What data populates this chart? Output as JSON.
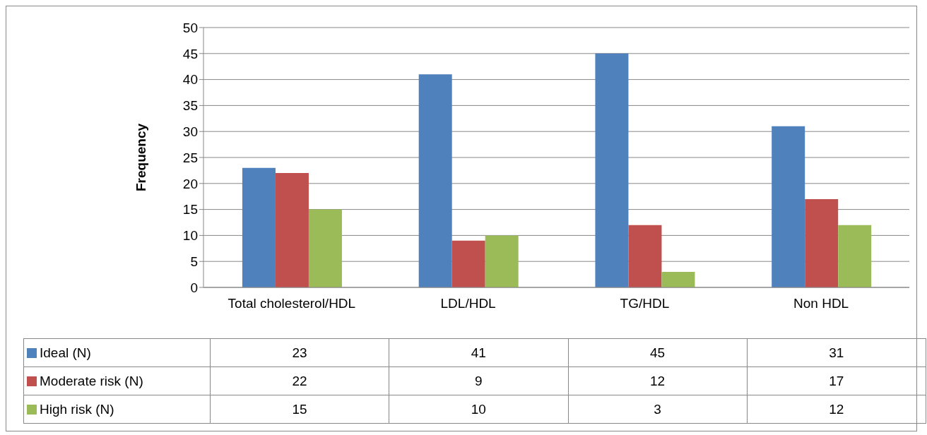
{
  "chart_data": {
    "type": "bar",
    "ylabel": "Frequency",
    "categories": [
      "Total cholesterol/HDL",
      "LDL/HDL",
      "TG/HDL",
      "Non HDL"
    ],
    "series": [
      {
        "name": "Ideal (N)",
        "color": "#4f81bd",
        "values": [
          23,
          41,
          45,
          31
        ]
      },
      {
        "name": "Moderate risk (N)",
        "color": "#c0504d",
        "values": [
          22,
          9,
          12,
          17
        ]
      },
      {
        "name": "High risk (N)",
        "color": "#9bbb59",
        "values": [
          15,
          10,
          3,
          12
        ]
      }
    ],
    "ylim": [
      0,
      50
    ],
    "yticks": [
      0,
      5,
      10,
      15,
      20,
      25,
      30,
      35,
      40,
      45,
      50
    ],
    "grid": "y",
    "legend": "bottom",
    "data_labels": true
  }
}
